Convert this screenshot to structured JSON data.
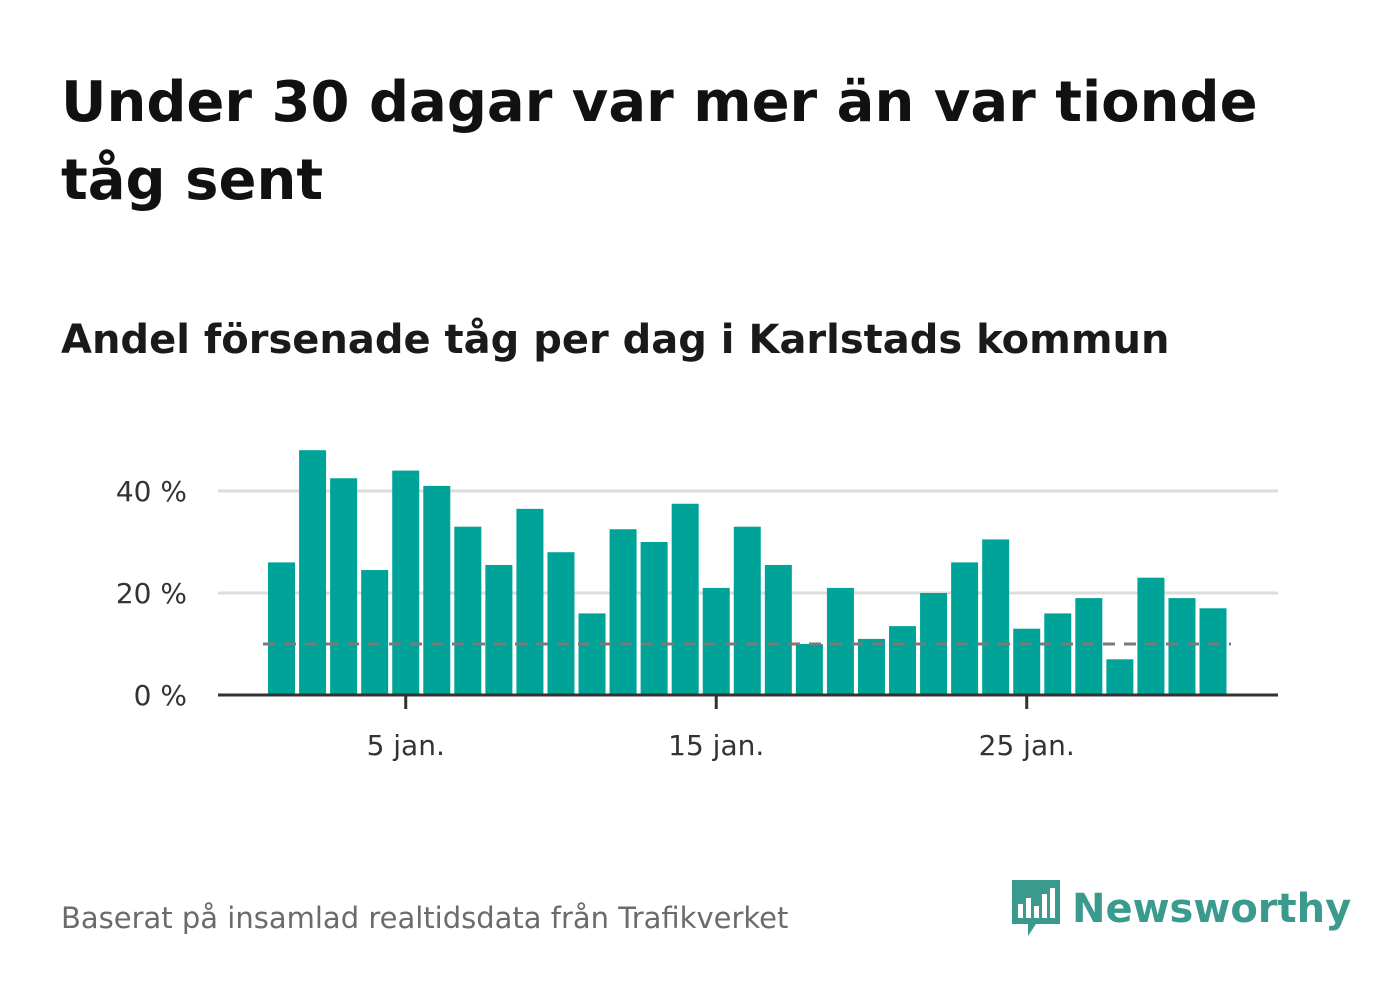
{
  "title": "Under 30 dagar var mer än var tionde tåg sent",
  "subtitle": "Andel försenade tåg per dag i Karlstads kommun",
  "source": "Baserat på insamlad realtidsdata från Trafikverket",
  "brand": {
    "name": "Newsworthy",
    "icon": "newsworthy-logo-icon",
    "color": "#3a9a8d"
  },
  "chart_data": {
    "type": "bar",
    "x": [
      1,
      2,
      3,
      4,
      5,
      6,
      7,
      8,
      9,
      10,
      11,
      12,
      13,
      14,
      15,
      16,
      17,
      18,
      19,
      20,
      21,
      22,
      23,
      24,
      25,
      26,
      27,
      28,
      29,
      30,
      31
    ],
    "values": [
      26,
      48,
      42.5,
      24.5,
      44,
      41,
      33,
      25.5,
      36.5,
      28,
      16,
      32.5,
      30,
      37.5,
      21,
      33,
      25.5,
      10,
      21,
      11,
      13.5,
      20,
      26,
      30.5,
      13,
      16,
      19,
      7,
      23,
      19,
      17
    ],
    "yticks": [
      {
        "value": 0,
        "label": "0 %"
      },
      {
        "value": 20,
        "label": "20 %"
      },
      {
        "value": 40,
        "label": "40 %"
      }
    ],
    "xticks": [
      {
        "value": 5,
        "label": "5 jan."
      },
      {
        "value": 15,
        "label": "15 jan."
      },
      {
        "value": 25,
        "label": "25 jan."
      }
    ],
    "ylim": [
      0,
      50
    ],
    "reference_line": {
      "value": 10,
      "style": "dashed",
      "color": "#7a7a7a"
    },
    "bar_color": "#00a398",
    "grid": true,
    "xlabel": "",
    "ylabel": ""
  }
}
